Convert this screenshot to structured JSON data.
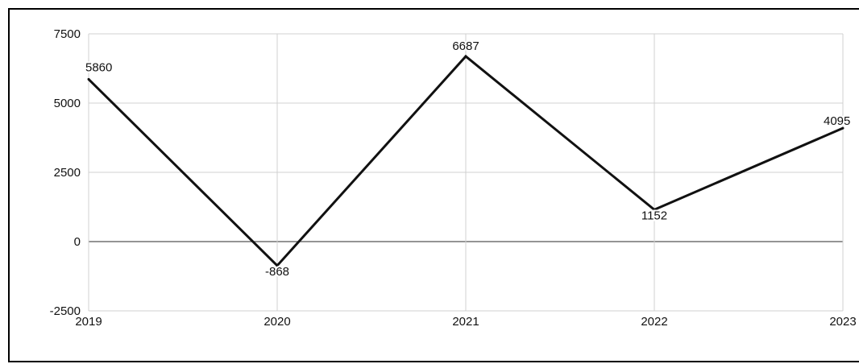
{
  "chart_data": {
    "type": "line",
    "title": "",
    "xlabel": "",
    "ylabel": "",
    "categories": [
      "2019",
      "2020",
      "2021",
      "2022",
      "2023"
    ],
    "series": [
      {
        "values": [
          5860,
          -868,
          6687,
          1152,
          4095
        ]
      }
    ],
    "data_labels": [
      "5860",
      "-868",
      "6687",
      "1152",
      "4095"
    ],
    "ylim": [
      -2500,
      7500
    ],
    "y_ticks": [
      -2500,
      0,
      2500,
      5000,
      7500
    ],
    "y_tick_labels": [
      "-2500",
      "0",
      "2500",
      "5000",
      "7500"
    ],
    "grid": true,
    "legend": "none",
    "colors": {
      "line": "#111111",
      "grid": "#d0d0d0",
      "zero_line": "#555555",
      "frame": "#000000"
    }
  }
}
